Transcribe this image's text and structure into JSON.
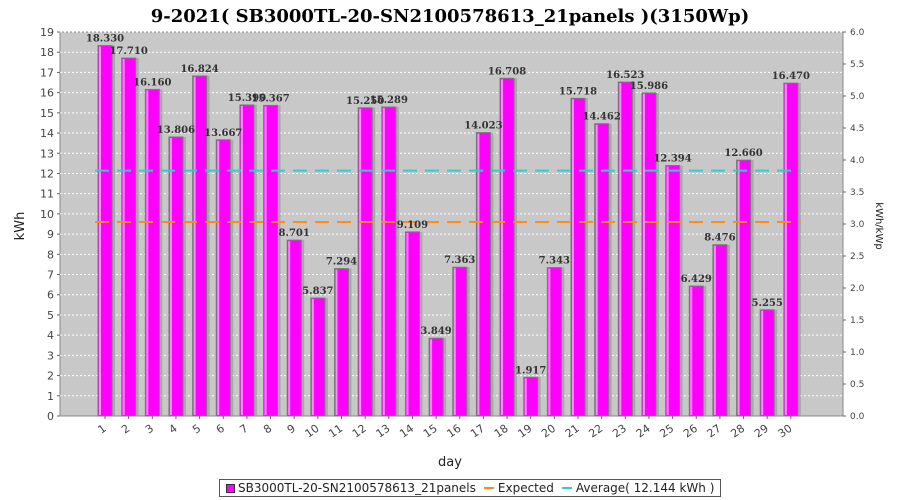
{
  "chart_data": {
    "type": "bar",
    "title": "9-2021( SB3000TL-20-SN2100578613_21panels )(3150Wp)",
    "xlabel": "day",
    "ylabel": "kWh",
    "y2label": "kWh/kWp",
    "ylim": [
      0,
      19
    ],
    "y2lim": [
      0,
      6.0
    ],
    "categories": [
      "1",
      "2",
      "3",
      "4",
      "5",
      "6",
      "7",
      "8",
      "9",
      "10",
      "11",
      "12",
      "13",
      "14",
      "15",
      "16",
      "17",
      "18",
      "19",
      "20",
      "21",
      "22",
      "23",
      "24",
      "25",
      "26",
      "27",
      "28",
      "29",
      "30"
    ],
    "series": [
      {
        "name": "SB3000TL-20-SN2100578613_21panels",
        "color": "#ff00ff",
        "values": [
          18.33,
          17.71,
          16.16,
          13.806,
          16.824,
          13.667,
          15.39,
          15.367,
          8.701,
          5.837,
          7.294,
          15.25,
          15.289,
          9.109,
          3.849,
          7.363,
          14.023,
          16.708,
          1.917,
          7.343,
          15.718,
          14.462,
          16.523,
          15.986,
          12.394,
          6.429,
          8.476,
          12.66,
          5.255,
          16.47
        ],
        "labels": [
          "18.330",
          "17.710",
          "16.160",
          "13.806",
          "16.824",
          "13.667",
          "15.390",
          "15.367",
          "8.701",
          "5.837",
          "7.294",
          "15.250",
          "15.289",
          "9.109",
          "3.849",
          "7.363",
          "14.023",
          "16.708",
          "1.917",
          "7.343",
          "15.718",
          "14.462",
          "16.523",
          "15.986",
          "12.394",
          "6.429",
          "8.476",
          "12.660",
          "5.255",
          "16.470"
        ]
      }
    ],
    "lines": [
      {
        "name": "Expected",
        "value": 9.6,
        "color": "#ff8c1a",
        "style": "dashed"
      },
      {
        "name": "Average( 12.144 kWh )",
        "value": 12.144,
        "color": "#33cccc",
        "style": "dashed"
      }
    ],
    "yticks": [
      "0",
      "1",
      "2",
      "3",
      "4",
      "5",
      "6",
      "7",
      "8",
      "9",
      "10",
      "11",
      "12",
      "13",
      "14",
      "15",
      "16",
      "17",
      "18",
      "19"
    ],
    "y2ticks": [
      "0.0",
      "0.5",
      "1.0",
      "1.5",
      "2.0",
      "2.5",
      "3.0",
      "3.5",
      "4.0",
      "4.5",
      "5.0",
      "5.5",
      "6.0"
    ],
    "grid": true,
    "legend_position": "bottom"
  },
  "legend": {
    "bar_label": "SB3000TL-20-SN2100578613_21panels",
    "expected_label": "Expected",
    "average_label": "Average( 12.144 kWh )"
  },
  "colors": {
    "plot_bg": "#c8c8c8",
    "bar": "#ff00ff",
    "expected": "#ff8c1a",
    "average": "#33cccc"
  }
}
